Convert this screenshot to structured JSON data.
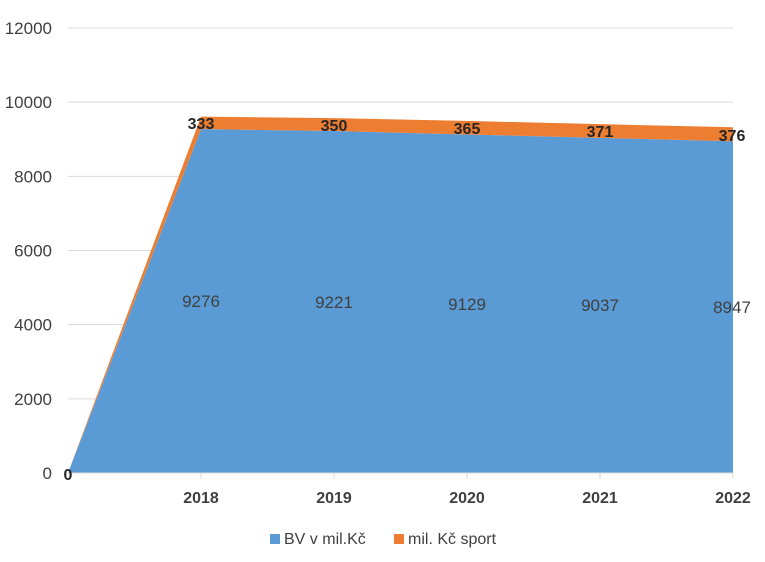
{
  "chart_data": {
    "type": "area",
    "stacked": true,
    "categories": [
      "",
      "2018",
      "2019",
      "2020",
      "2021",
      "2022"
    ],
    "series": [
      {
        "name": "BV v mil.Kč",
        "values": [
          0,
          9276,
          9221,
          9129,
          9037,
          8947
        ],
        "color": "#5B9BD5"
      },
      {
        "name": "mil. Kč sport",
        "values": [
          0,
          333,
          350,
          365,
          371,
          376
        ],
        "color": "#ED7D31"
      }
    ],
    "data_labels": {
      "blue": [
        "",
        "9276",
        "9221",
        "9129",
        "9037",
        "8947"
      ],
      "orange": [
        "0",
        "333",
        "350",
        "365",
        "371",
        "376"
      ]
    },
    "y_ticks": [
      "0",
      "2000",
      "4000",
      "6000",
      "8000",
      "10000",
      "12000"
    ],
    "ylim": [
      0,
      12000
    ],
    "grid": true,
    "legend_position": "bottom",
    "title": "",
    "xlabel": "",
    "ylabel": ""
  }
}
